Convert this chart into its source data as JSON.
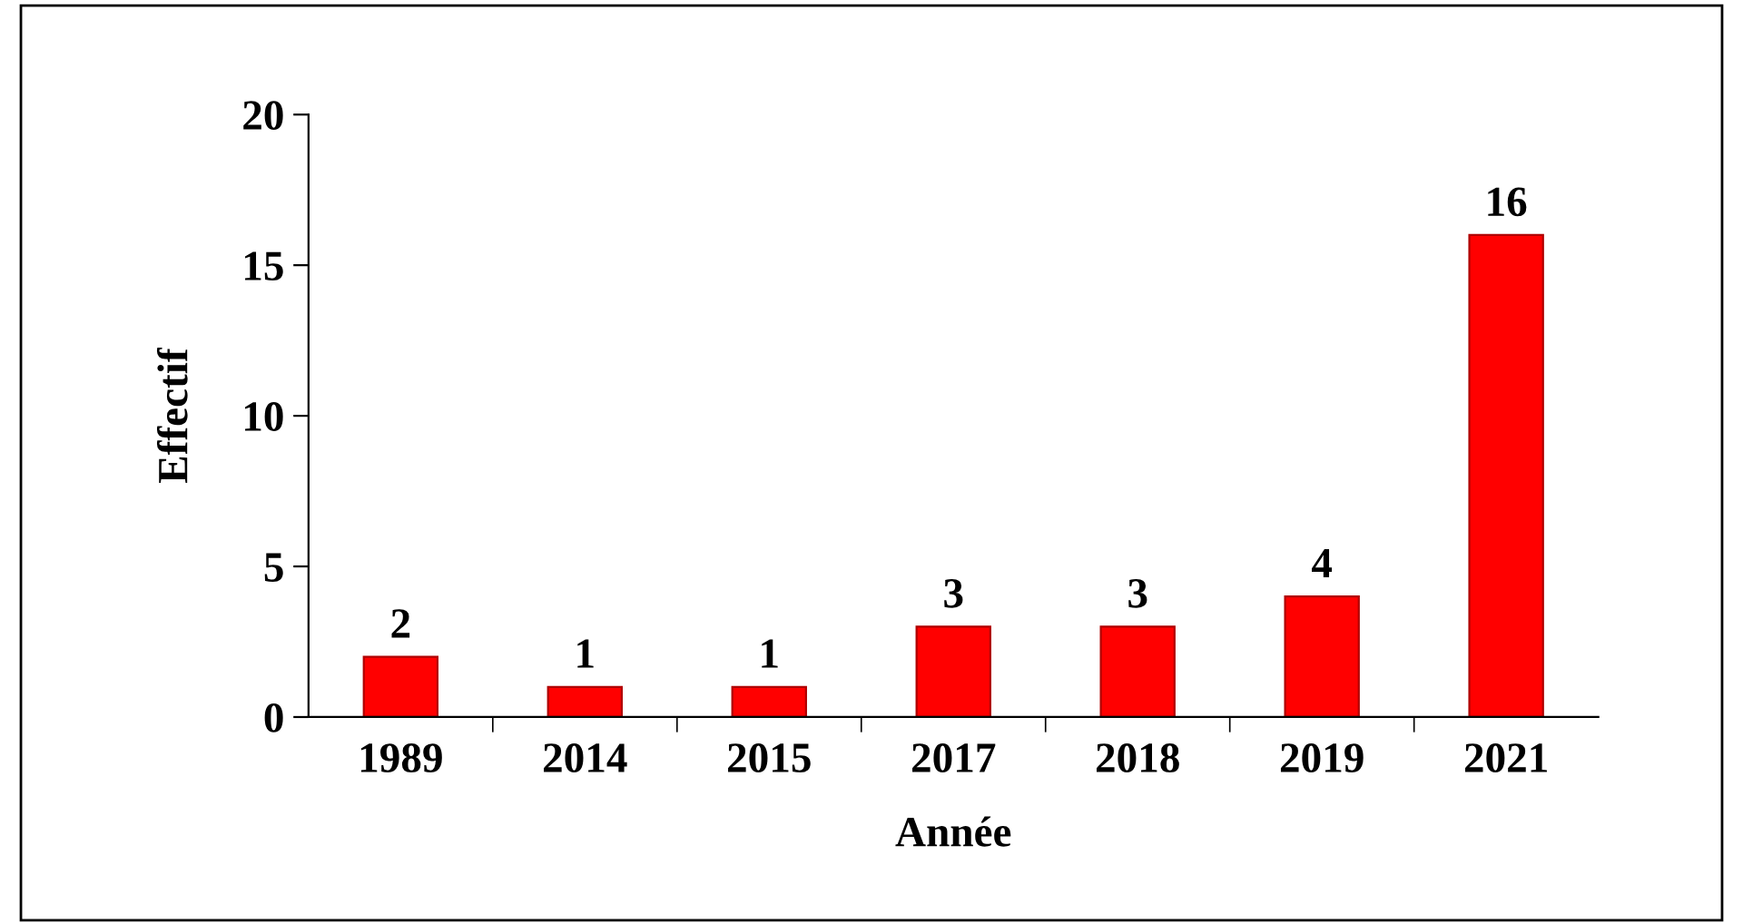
{
  "chart_data": {
    "type": "bar",
    "xlabel": "Année",
    "ylabel": "Effectif",
    "categories": [
      "1989",
      "2014",
      "2015",
      "2017",
      "2018",
      "2019",
      "2021"
    ],
    "values": [
      2,
      1,
      1,
      3,
      3,
      4,
      16
    ],
    "color": "#ff0000",
    "ylim": [
      0,
      20
    ],
    "yticks": [
      0,
      5,
      10,
      15,
      20
    ],
    "grid": false,
    "data_labels": true
  }
}
